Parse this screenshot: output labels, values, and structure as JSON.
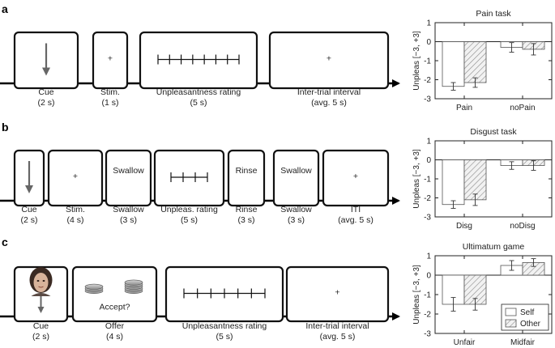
{
  "panels": [
    {
      "letter": "a",
      "screens": [
        {
          "label": "Cue",
          "duration": "(2 s)",
          "content": "arrow",
          "text": ""
        },
        {
          "label": "Stim.",
          "duration": "(1 s)",
          "content": "fixation",
          "text": "+"
        },
        {
          "label": "Unpleasantness rating",
          "duration": "(5 s)",
          "content": "scale",
          "text": ""
        },
        {
          "label": "Inter-trial interval",
          "duration": "(avg. 5 s)",
          "content": "fixation",
          "text": "+"
        }
      ]
    },
    {
      "letter": "b",
      "screens": [
        {
          "label": "Cue",
          "duration": "(2 s)",
          "content": "arrow",
          "text": ""
        },
        {
          "label": "Stim.",
          "duration": "(4 s)",
          "content": "fixation",
          "text": "+"
        },
        {
          "label": "Swallow",
          "duration": "(3 s)",
          "content": "word",
          "text": "Swallow"
        },
        {
          "label": "Unpleas. rating",
          "duration": "(5 s)",
          "content": "scale",
          "text": ""
        },
        {
          "label": "Rinse",
          "duration": "(3 s)",
          "content": "word",
          "text": "Rinse"
        },
        {
          "label": "Swallow",
          "duration": "(3 s)",
          "content": "word",
          "text": "Swallow"
        },
        {
          "label": "ITI",
          "duration": "(avg. 5 s)",
          "content": "fixation",
          "text": "+"
        }
      ]
    },
    {
      "letter": "c",
      "screens": [
        {
          "label": "Cue",
          "duration": "(2 s)",
          "content": "face-arrow",
          "text": ""
        },
        {
          "label": "Offer",
          "duration": "(4 s)",
          "content": "offer",
          "text": "Accept?"
        },
        {
          "label": "Unpleasantness rating",
          "duration": "(5 s)",
          "content": "scale",
          "text": ""
        },
        {
          "label": "Inter-trial interval",
          "duration": "(avg. 5 s)",
          "content": "fixation",
          "text": "+"
        }
      ]
    }
  ],
  "chart_data": [
    {
      "type": "bar",
      "title": "Pain task",
      "ylabel": "Unpleas [−3, +3]",
      "categories": [
        "Pain",
        "noPain"
      ],
      "series": [
        {
          "name": "Self",
          "values": [
            -2.35,
            -0.3
          ],
          "errors": [
            0.2,
            0.25
          ]
        },
        {
          "name": "Other",
          "values": [
            -2.15,
            -0.4
          ],
          "errors": [
            0.25,
            0.3
          ]
        }
      ],
      "ylim": [
        -3,
        1
      ],
      "yticks": [
        -3,
        -2,
        -1,
        0,
        1
      ],
      "legend": "none"
    },
    {
      "type": "bar",
      "title": "Disgust task",
      "ylabel": "Unpleas [−3, +3]",
      "categories": [
        "Disg",
        "noDisg"
      ],
      "series": [
        {
          "name": "Self",
          "values": [
            -2.35,
            -0.3
          ],
          "errors": [
            0.2,
            0.2
          ]
        },
        {
          "name": "Other",
          "values": [
            -2.1,
            -0.3
          ],
          "errors": [
            0.3,
            0.25
          ]
        }
      ],
      "ylim": [
        -3,
        1
      ],
      "yticks": [
        -3,
        -2,
        -1,
        0,
        1
      ],
      "legend": "none"
    },
    {
      "type": "bar",
      "title": "Ultimatum game",
      "ylabel": "Unpleas [−3, +3]",
      "categories": [
        "Unfair",
        "Midfair"
      ],
      "series": [
        {
          "name": "Self",
          "values": [
            -1.5,
            0.5
          ],
          "errors": [
            0.35,
            0.25
          ]
        },
        {
          "name": "Other",
          "values": [
            -1.5,
            0.65
          ],
          "errors": [
            0.3,
            0.2
          ]
        }
      ],
      "ylim": [
        -3,
        1
      ],
      "yticks": [
        -3,
        -2,
        -1,
        0,
        1
      ],
      "legend": "bottom-right"
    }
  ],
  "legend": {
    "self": "Self",
    "other": "Other"
  }
}
